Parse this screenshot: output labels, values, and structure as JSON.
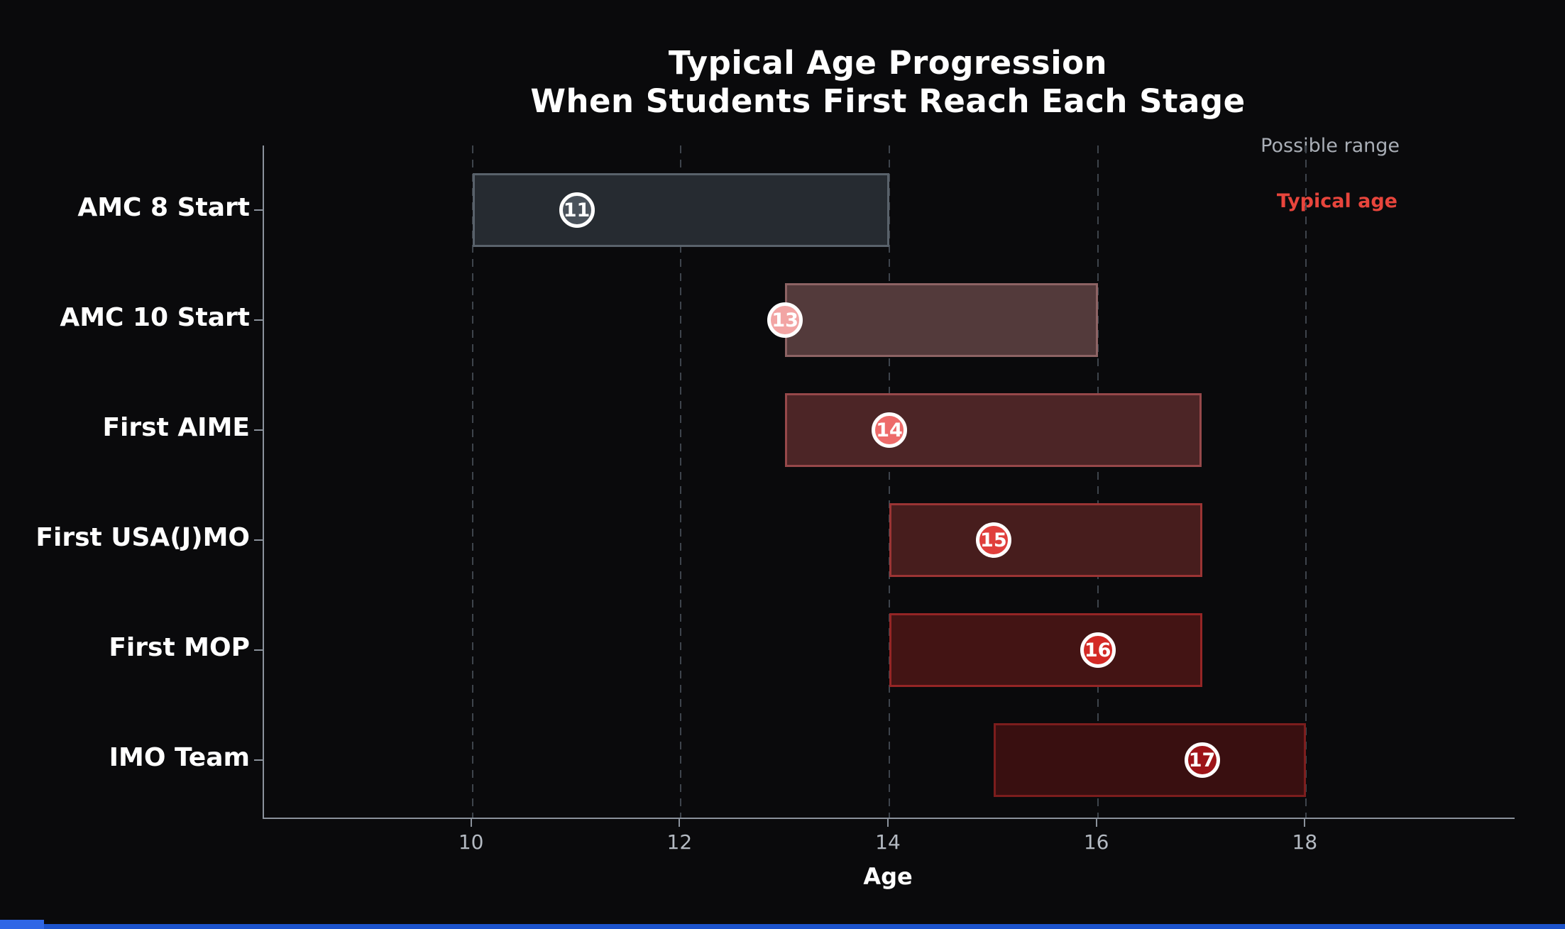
{
  "title": {
    "line1": "Typical Age Progression",
    "line2": "When Students First Reach Each Stage"
  },
  "legend": {
    "range_label": "Possible range",
    "typical_label": "Typical age",
    "range_color": "#a9aeb6",
    "typical_color": "#e8453c"
  },
  "chart_data": {
    "type": "bar",
    "orientation": "horizontal-range",
    "title": "Typical Age Progression When Students First Reach Each Stage",
    "xlabel": "Age",
    "ylabel": "",
    "xlim": [
      8,
      20
    ],
    "xticks": [
      10,
      12,
      14,
      16,
      18
    ],
    "grid": "vertical-dashed",
    "legend_position": "top-right",
    "categories": [
      "AMC 8 Start",
      "AMC 10 Start",
      "First AIME",
      "First USA(J)MO",
      "First MOP",
      "IMO Team"
    ],
    "series": [
      {
        "name": "AMC 8 Start",
        "range": [
          10,
          14
        ],
        "typical": 11,
        "color": "#4a525b",
        "fill": "#262b31",
        "border": "#59626b"
      },
      {
        "name": "AMC 10 Start",
        "range": [
          13,
          16
        ],
        "typical": 13,
        "color": "#f2a5a4",
        "fill": "#533a3b",
        "border": "#8d6364"
      },
      {
        "name": "First AIME",
        "range": [
          13,
          17
        ],
        "typical": 14,
        "color": "#ed6b6a",
        "fill": "#4c2526",
        "border": "#96484a"
      },
      {
        "name": "First USA(J)MO",
        "range": [
          14,
          17
        ],
        "typical": 15,
        "color": "#e03f3c",
        "fill": "#471d1d",
        "border": "#9b3434"
      },
      {
        "name": "First MOP",
        "range": [
          14,
          17
        ],
        "typical": 16,
        "color": "#d32a26",
        "fill": "#431414",
        "border": "#952525"
      },
      {
        "name": "IMO Team",
        "range": [
          15,
          18
        ],
        "typical": 17,
        "color": "#9d1418",
        "fill": "#390f10",
        "border": "#7c1d1d"
      }
    ]
  },
  "colors": {
    "background": "#0a0a0c",
    "spine": "#8b929c",
    "grid": "#3e444c",
    "tick_label": "#b4bac2",
    "marker_ring": "#ffffff",
    "marker_text": "#ffffff",
    "bottom_strip": "#1c53cc",
    "bottom_strip_corner": "#2f67e6"
  }
}
